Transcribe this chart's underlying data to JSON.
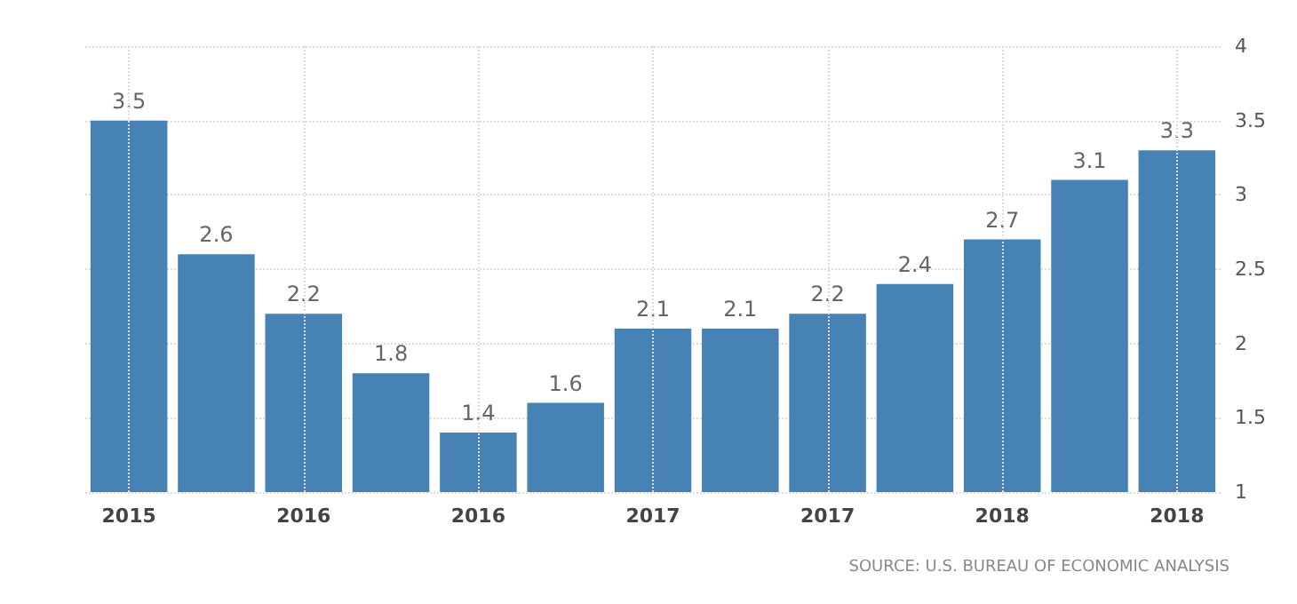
{
  "chart_data": {
    "type": "bar",
    "categories": [
      "2015",
      null,
      "2016",
      null,
      "2016",
      null,
      "2017",
      null,
      "2017",
      null,
      "2018",
      null,
      "2018"
    ],
    "values": [
      3.5,
      2.6,
      2.2,
      1.8,
      1.4,
      1.6,
      2.1,
      2.1,
      2.2,
      2.4,
      2.7,
      3.1,
      3.3
    ],
    "color": "#4682b4",
    "ylim": [
      1,
      4
    ],
    "yticks": [
      1,
      1.5,
      2,
      2.5,
      3,
      3.5,
      4
    ],
    "grid": true,
    "data_labels": true,
    "annotations": [
      "SOURCE: U.S. BUREAU OF ECONOMIC ANALYSIS"
    ]
  }
}
